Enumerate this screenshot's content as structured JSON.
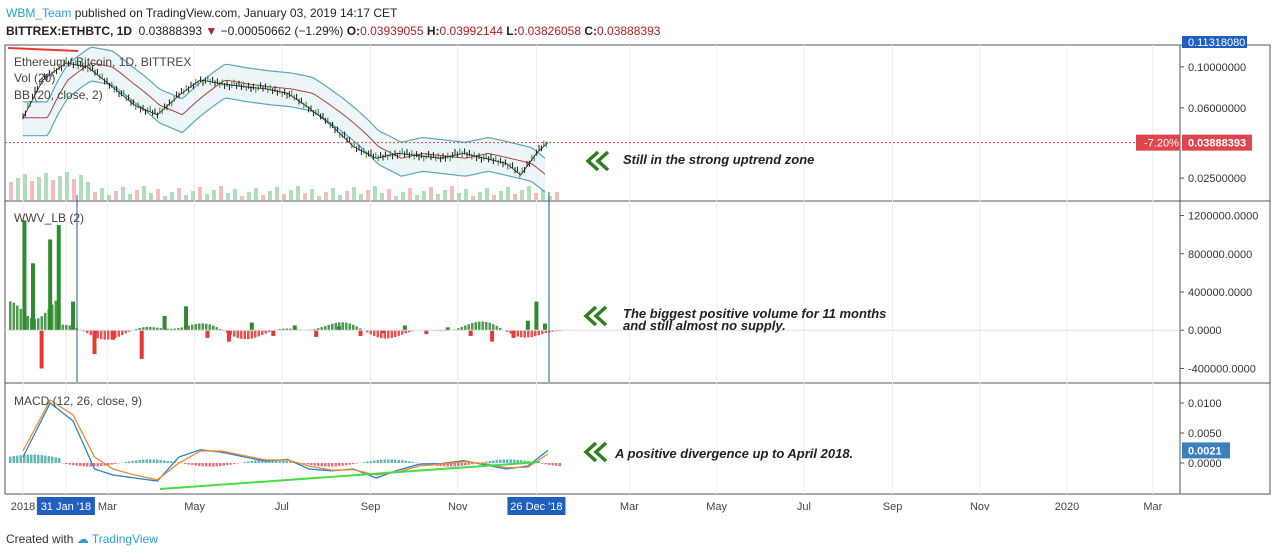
{
  "header": {
    "user": "WBM_Team",
    "published_text": "published on TradingView.com, January 03, 2019 14:17 CET",
    "symbol": "BITTREX:ETHBTC, 1D",
    "last": "0.03888393",
    "change": "−0.00050662 (−1.29%)",
    "open_label": "O:",
    "open": "0.03939055",
    "high_label": "H:",
    "high": "0.03992144",
    "low_label": "L:",
    "low": "0.03826058",
    "close_label": "C:",
    "close": "0.03888393"
  },
  "footer": {
    "created_with": "Created with",
    "brand": "TradingView"
  },
  "colors": {
    "up": "#2e8b2e",
    "down": "#e53935",
    "bb": "#5aa8b8",
    "bb_mid": "#b04040",
    "macd": "#2a7fd4",
    "signal": "#ef8a30",
    "trendline": "#44dd44",
    "arrow": "#2f7d1f",
    "axis_badge": "#1f5fbf",
    "price_badge": "#e0444d",
    "macd_badge": "#3c7fbf"
  },
  "chart_data": [
    {
      "type": "line",
      "title": "Ethereum / Bitcoin, 1D, BITTREX",
      "indicators": [
        "Vol (20)",
        "BB (20, close, 2)"
      ],
      "price_axis_ticks": [
        "0.10000000",
        "0.06000000",
        "0.02500000"
      ],
      "top_badge": "0.11318080",
      "current_price_label": "0.03888393",
      "current_change_label": "-7.20%",
      "series": [
        {
          "name": "Ethereum / Bitcoin",
          "x": [
            "2018-01-01",
            "2018-01-15",
            "2018-01-31",
            "2018-02-15",
            "2018-03-01",
            "2018-03-20",
            "2018-04-05",
            "2018-04-20",
            "2018-05-05",
            "2018-05-20",
            "2018-06-05",
            "2018-06-20",
            "2018-07-05",
            "2018-07-20",
            "2018-08-05",
            "2018-08-20",
            "2018-09-05",
            "2018-09-20",
            "2018-10-05",
            "2018-10-20",
            "2018-11-05",
            "2018-11-20",
            "2018-12-05",
            "2018-12-15",
            "2018-12-26",
            "2019-01-03"
          ],
          "y": [
            0.053,
            0.085,
            0.105,
            0.1,
            0.082,
            0.062,
            0.055,
            0.07,
            0.085,
            0.081,
            0.078,
            0.076,
            0.072,
            0.06,
            0.048,
            0.037,
            0.032,
            0.034,
            0.033,
            0.032,
            0.034,
            0.032,
            0.03,
            0.026,
            0.034,
            0.0389
          ]
        }
      ]
    },
    {
      "type": "bar",
      "title": "WWV_LB (2)",
      "axis_ticks": [
        "1200000.0000",
        "800000.0000",
        "400000.0000",
        "0.0000",
        "-400000.0000"
      ],
      "ylim": [
        -500000,
        1300000
      ],
      "annotation": "The biggest positive volume for 11 months",
      "annotation_line2": "and still almost no supply.",
      "series": [
        {
          "name": "WWV_LB",
          "x": [
            "2018-01-02",
            "2018-01-08",
            "2018-01-14",
            "2018-01-20",
            "2018-01-26",
            "2018-02-05",
            "2018-02-20",
            "2018-03-05",
            "2018-03-25",
            "2018-04-10",
            "2018-04-25",
            "2018-05-10",
            "2018-05-25",
            "2018-06-10",
            "2018-06-25",
            "2018-07-10",
            "2018-07-25",
            "2018-08-10",
            "2018-08-25",
            "2018-09-10",
            "2018-09-25",
            "2018-10-10",
            "2018-10-25",
            "2018-11-10",
            "2018-11-25",
            "2018-12-10",
            "2018-12-20",
            "2018-12-26",
            "2019-01-01"
          ],
          "y": [
            1150000,
            700000,
            -400000,
            950000,
            1100000,
            300000,
            -250000,
            -100000,
            -300000,
            150000,
            250000,
            -80000,
            -120000,
            80000,
            -60000,
            50000,
            -70000,
            40000,
            -60000,
            -30000,
            50000,
            -40000,
            30000,
            -60000,
            -120000,
            -80000,
            100000,
            300000,
            70000
          ]
        }
      ]
    },
    {
      "type": "line",
      "title": "MACD (12, 26, close, 9)",
      "axis_ticks": [
        "0.0100",
        "0.0050",
        "0.0000"
      ],
      "ylim": [
        -0.0045,
        0.0125
      ],
      "current_label": "0.0021",
      "annotation": "A positive divergence up to April 2018.",
      "series": [
        {
          "name": "MACD",
          "x": [
            "2018-01-01",
            "2018-01-20",
            "2018-02-05",
            "2018-02-20",
            "2018-03-05",
            "2018-03-20",
            "2018-04-05",
            "2018-04-20",
            "2018-05-05",
            "2018-05-20",
            "2018-06-05",
            "2018-06-20",
            "2018-07-05",
            "2018-07-20",
            "2018-08-05",
            "2018-08-20",
            "2018-09-05",
            "2018-09-20",
            "2018-10-05",
            "2018-10-20",
            "2018-11-05",
            "2018-11-20",
            "2018-12-05",
            "2018-12-20",
            "2019-01-03"
          ],
          "y": [
            0.001,
            0.01,
            0.007,
            -0.001,
            -0.002,
            -0.0025,
            -0.003,
            0.001,
            0.0022,
            0.0018,
            0.001,
            0.0003,
            0.0006,
            -0.001,
            -0.0013,
            -0.001,
            -0.0025,
            -0.0012,
            -0.0002,
            -0.0001,
            0.0004,
            -0.0003,
            -0.001,
            -0.0005,
            0.0021
          ]
        },
        {
          "name": "Signal",
          "x": [
            "2018-01-01",
            "2018-01-20",
            "2018-02-05",
            "2018-02-20",
            "2018-03-05",
            "2018-03-20",
            "2018-04-05",
            "2018-04-20",
            "2018-05-05",
            "2018-05-20",
            "2018-06-05",
            "2018-06-20",
            "2018-07-05",
            "2018-07-20",
            "2018-08-05",
            "2018-08-20",
            "2018-09-05",
            "2018-09-20",
            "2018-10-05",
            "2018-10-20",
            "2018-11-05",
            "2018-11-20",
            "2018-12-05",
            "2018-12-20",
            "2019-01-03"
          ],
          "y": [
            0.002,
            0.0105,
            0.008,
            0.001,
            -0.001,
            -0.002,
            -0.0028,
            0.0,
            0.002,
            0.002,
            0.0012,
            0.0005,
            0.0005,
            -0.0005,
            -0.0012,
            -0.0011,
            -0.002,
            -0.0015,
            -0.0005,
            -0.0002,
            0.0002,
            -0.0001,
            -0.0008,
            -0.0007,
            0.0015
          ]
        }
      ]
    }
  ],
  "time_axis": {
    "labels": [
      "2018",
      "31 Jan '18",
      "Mar",
      "May",
      "Jul",
      "Sep",
      "Nov",
      "26 Dec '18",
      "Mar",
      "May",
      "Jul",
      "Sep",
      "Nov",
      "2020",
      "Mar"
    ],
    "dates": [
      "2018-01-01",
      "2018-01-31",
      "2018-03-01",
      "2018-05-01",
      "2018-07-01",
      "2018-09-01",
      "2018-11-01",
      "2018-12-26",
      "2019-03-01",
      "2019-05-01",
      "2019-07-01",
      "2019-09-01",
      "2019-11-01",
      "2020-01-01",
      "2020-03-01"
    ]
  },
  "annotations": {
    "price": "Still in the strong uptrend zone"
  }
}
